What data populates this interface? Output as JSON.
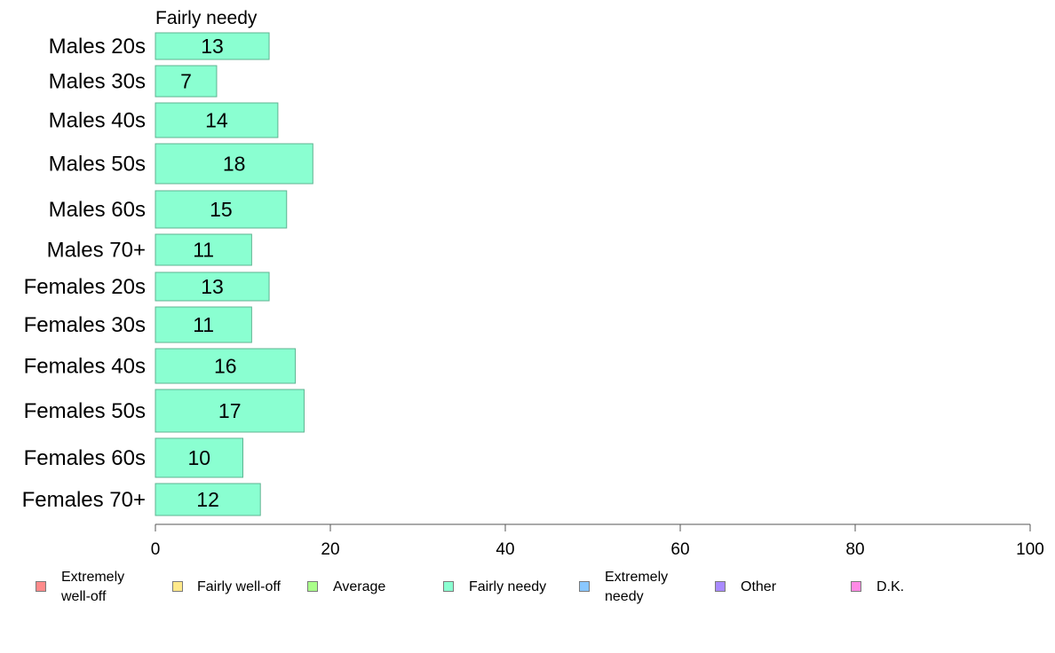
{
  "chart_data": {
    "type": "bar",
    "orientation": "horizontal",
    "title": "Fairly needy",
    "categories": [
      "Males 20s",
      "Males 30s",
      "Males 40s",
      "Males 50s",
      "Males 60s",
      "Males 70+",
      "Females 20s",
      "Females 30s",
      "Females 40s",
      "Females 50s",
      "Females 60s",
      "Females 70+"
    ],
    "values": [
      13,
      7,
      14,
      18,
      15,
      11,
      13,
      11,
      16,
      17,
      10,
      12
    ],
    "xlim": [
      0,
      100
    ],
    "xticks": [
      0,
      20,
      40,
      60,
      80,
      100
    ],
    "grid": false,
    "bar_color": "#8affd1",
    "bar_border": "#5fb391",
    "legend": {
      "placement": "bottom",
      "items": [
        {
          "label": "Extremely\nwell-off",
          "color": "#ff8a8a"
        },
        {
          "label": "Fairly well-off",
          "color": "#ffe98a"
        },
        {
          "label": "Average",
          "color": "#aaff8a"
        },
        {
          "label": "Fairly needy",
          "color": "#8affd1"
        },
        {
          "label": "Extremely\nneedy",
          "color": "#8ac8ff"
        },
        {
          "label": "Other",
          "color": "#a98aff"
        },
        {
          "label": "D.K.",
          "color": "#ff8ae6"
        }
      ]
    }
  }
}
